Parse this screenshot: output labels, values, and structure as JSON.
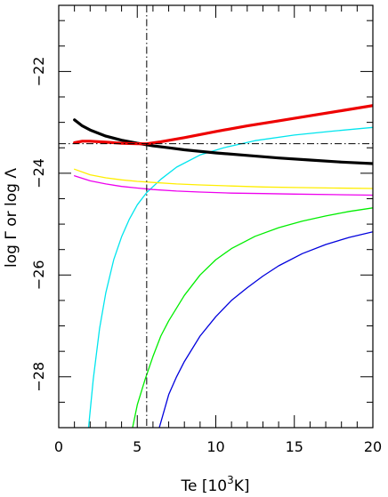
{
  "chart_data": {
    "type": "line",
    "xlabel": "Te [10",
    "xlabel_sup": "3",
    "xlabel_tail": "K]",
    "ylabel": "log Γ or log Λ",
    "xlim": [
      0,
      20
    ],
    "ylim": [
      -29,
      -20.7
    ],
    "x_ticks": [
      0,
      5,
      10,
      15,
      20
    ],
    "x_tick_labels": [
      "0",
      "5",
      "10",
      "15",
      "20"
    ],
    "y_ticks": [
      -22,
      -24,
      -26,
      -28
    ],
    "y_tick_labels": [
      "−22",
      "−24",
      "−26",
      "−28"
    ],
    "grid": false,
    "reference_lines": [
      {
        "orientation": "vertical",
        "x": 5.6,
        "style": "dash-dot",
        "color": "#000000"
      },
      {
        "orientation": "horizontal",
        "y": -23.42,
        "style": "dash-dot",
        "color": "#000000"
      }
    ],
    "series": [
      {
        "color": "#00e5ee",
        "width": 1.3,
        "x": [
          1.9,
          2.2,
          2.6,
          3.0,
          3.5,
          4.0,
          4.5,
          5.0,
          5.6,
          6.5,
          7.5,
          9.0,
          10.5,
          12.5,
          15.0,
          17.5,
          20.0
        ],
        "y": [
          -29.0,
          -28.05,
          -27.05,
          -26.35,
          -25.7,
          -25.25,
          -24.9,
          -24.62,
          -24.38,
          -24.12,
          -23.88,
          -23.64,
          -23.5,
          -23.36,
          -23.25,
          -23.17,
          -23.1
        ]
      },
      {
        "color": "#00ee00",
        "width": 1.3,
        "x": [
          4.7,
          5.0,
          5.5,
          6.0,
          6.5,
          7.0,
          8.0,
          9.0,
          10.0,
          11.0,
          12.5,
          14.0,
          15.5,
          17.0,
          18.5,
          20.0
        ],
        "y": [
          -29.0,
          -28.55,
          -28.05,
          -27.6,
          -27.2,
          -26.9,
          -26.4,
          -26.0,
          -25.7,
          -25.48,
          -25.24,
          -25.07,
          -24.94,
          -24.84,
          -24.75,
          -24.68
        ]
      },
      {
        "color": "#0000dd",
        "width": 1.3,
        "x": [
          6.4,
          7.0,
          7.5,
          8.0,
          9.0,
          10.0,
          11.0,
          12.0,
          13.0,
          14.0,
          15.5,
          17.0,
          18.5,
          20.0
        ],
        "y": [
          -29.0,
          -28.35,
          -28.0,
          -27.7,
          -27.2,
          -26.82,
          -26.5,
          -26.25,
          -26.02,
          -25.82,
          -25.58,
          -25.4,
          -25.26,
          -25.15
        ]
      },
      {
        "color": "#ffee00",
        "width": 1.3,
        "x": [
          1.0,
          2.0,
          3.0,
          4.0,
          5.0,
          6.0,
          7.5,
          9.0,
          11.0,
          13.0,
          15.0,
          17.5,
          20.0
        ],
        "y": [
          -23.92,
          -24.03,
          -24.09,
          -24.13,
          -24.16,
          -24.18,
          -24.21,
          -24.23,
          -24.25,
          -24.27,
          -24.28,
          -24.29,
          -24.3
        ]
      },
      {
        "color": "#ee00ee",
        "width": 1.3,
        "x": [
          1.0,
          2.0,
          3.0,
          4.0,
          5.0,
          6.0,
          7.5,
          9.0,
          11.0,
          13.0,
          15.0,
          17.5,
          20.0
        ],
        "y": [
          -24.05,
          -24.15,
          -24.21,
          -24.26,
          -24.29,
          -24.32,
          -24.35,
          -24.37,
          -24.39,
          -24.4,
          -24.41,
          -24.42,
          -24.43
        ]
      },
      {
        "color": "#000000",
        "width": 3.2,
        "x": [
          1.0,
          1.5,
          2.0,
          3.0,
          4.0,
          5.0,
          6.0,
          7.0,
          8.0,
          10.0,
          12.0,
          14.0,
          16.0,
          18.0,
          20.0
        ],
        "y": [
          -22.95,
          -23.07,
          -23.15,
          -23.27,
          -23.35,
          -23.41,
          -23.46,
          -23.5,
          -23.54,
          -23.6,
          -23.65,
          -23.7,
          -23.74,
          -23.78,
          -23.81
        ]
      },
      {
        "color": "#ee0000",
        "width": 3.2,
        "x": [
          1.0,
          1.5,
          2.0,
          3.0,
          4.0,
          5.0,
          5.6,
          6.5,
          8.0,
          10.0,
          12.0,
          14.0,
          16.0,
          18.0,
          20.0
        ],
        "y": [
          -23.4,
          -23.37,
          -23.37,
          -23.39,
          -23.41,
          -23.42,
          -23.42,
          -23.38,
          -23.3,
          -23.18,
          -23.07,
          -22.97,
          -22.87,
          -22.77,
          -22.67
        ]
      }
    ]
  }
}
